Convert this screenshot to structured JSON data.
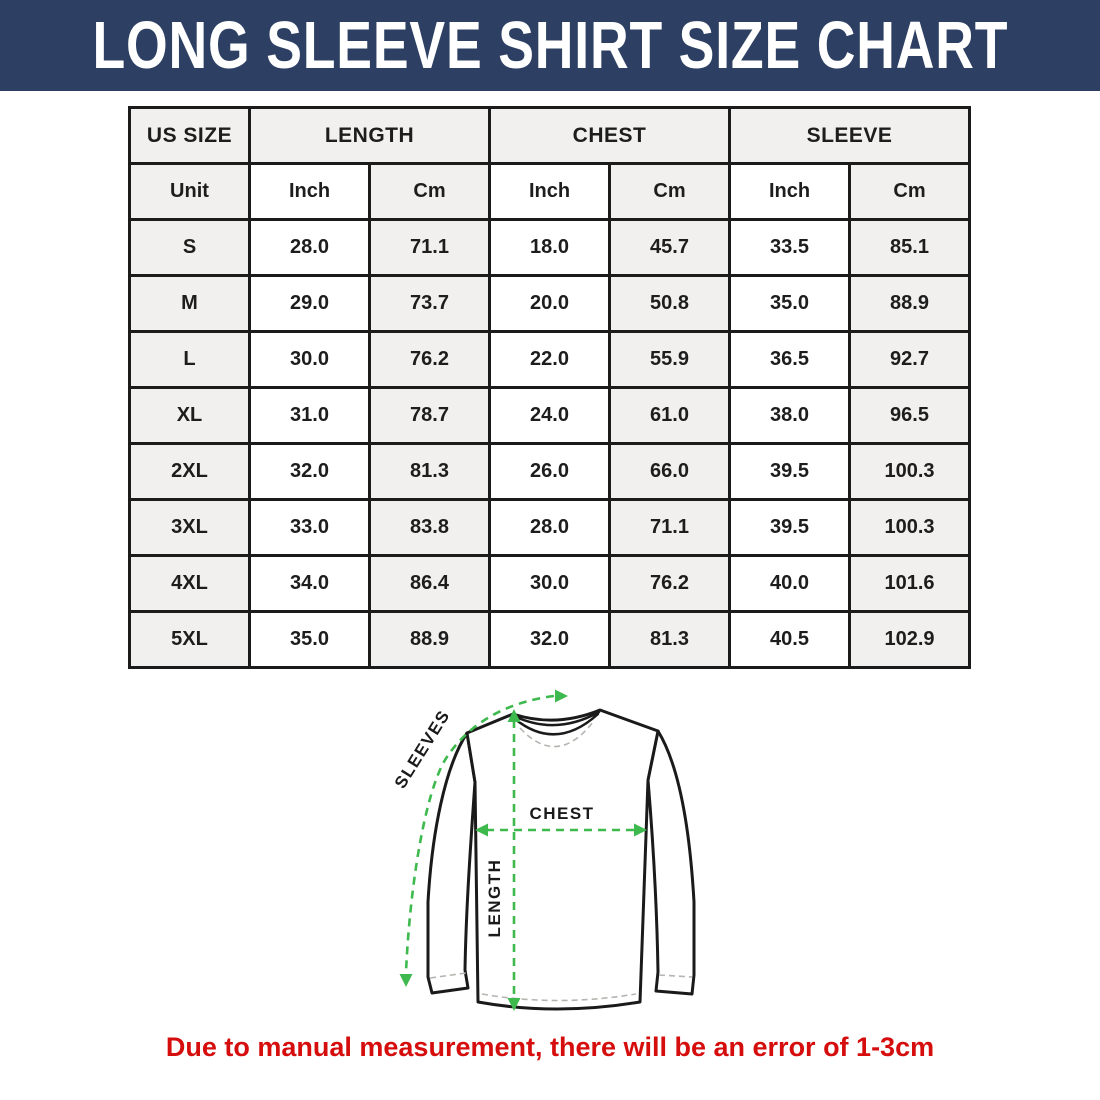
{
  "banner": {
    "title": "LONG SLEEVE SHIRT SIZE CHART",
    "bg_color": "#2d4063",
    "text_color": "#ffffff"
  },
  "chart_data": {
    "type": "table",
    "title": "LONG SLEEVE SHIRT SIZE CHART",
    "group_headers": [
      {
        "label": "US SIZE",
        "span": 1
      },
      {
        "label": "LENGTH",
        "span": 2
      },
      {
        "label": "CHEST",
        "span": 2
      },
      {
        "label": "SLEEVE",
        "span": 2
      }
    ],
    "unit_headers": [
      "Unit",
      "Inch",
      "Cm",
      "Inch",
      "Cm",
      "Inch",
      "Cm"
    ],
    "rows": [
      {
        "size": "S",
        "values": [
          "28.0",
          "71.1",
          "18.0",
          "45.7",
          "33.5",
          "85.1"
        ]
      },
      {
        "size": "M",
        "values": [
          "29.0",
          "73.7",
          "20.0",
          "50.8",
          "35.0",
          "88.9"
        ]
      },
      {
        "size": "L",
        "values": [
          "30.0",
          "76.2",
          "22.0",
          "55.9",
          "36.5",
          "92.7"
        ]
      },
      {
        "size": "XL",
        "values": [
          "31.0",
          "78.7",
          "24.0",
          "61.0",
          "38.0",
          "96.5"
        ]
      },
      {
        "size": "2XL",
        "values": [
          "32.0",
          "81.3",
          "26.0",
          "66.0",
          "39.5",
          "100.3"
        ]
      },
      {
        "size": "3XL",
        "values": [
          "33.0",
          "83.8",
          "28.0",
          "71.1",
          "39.5",
          "100.3"
        ]
      },
      {
        "size": "4XL",
        "values": [
          "34.0",
          "86.4",
          "30.0",
          "76.2",
          "40.0",
          "101.6"
        ]
      },
      {
        "size": "5XL",
        "values": [
          "35.0",
          "88.9",
          "32.0",
          "81.3",
          "40.5",
          "102.9"
        ]
      }
    ]
  },
  "diagram": {
    "sleeves_label": "SLEEVES",
    "chest_label": "CHEST",
    "length_label": "LENGTH",
    "arrow_color": "#3eb94e"
  },
  "footnote": {
    "text": "Due to manual measurement, there will be an error of 1-3cm",
    "color": "#d60d0d"
  }
}
